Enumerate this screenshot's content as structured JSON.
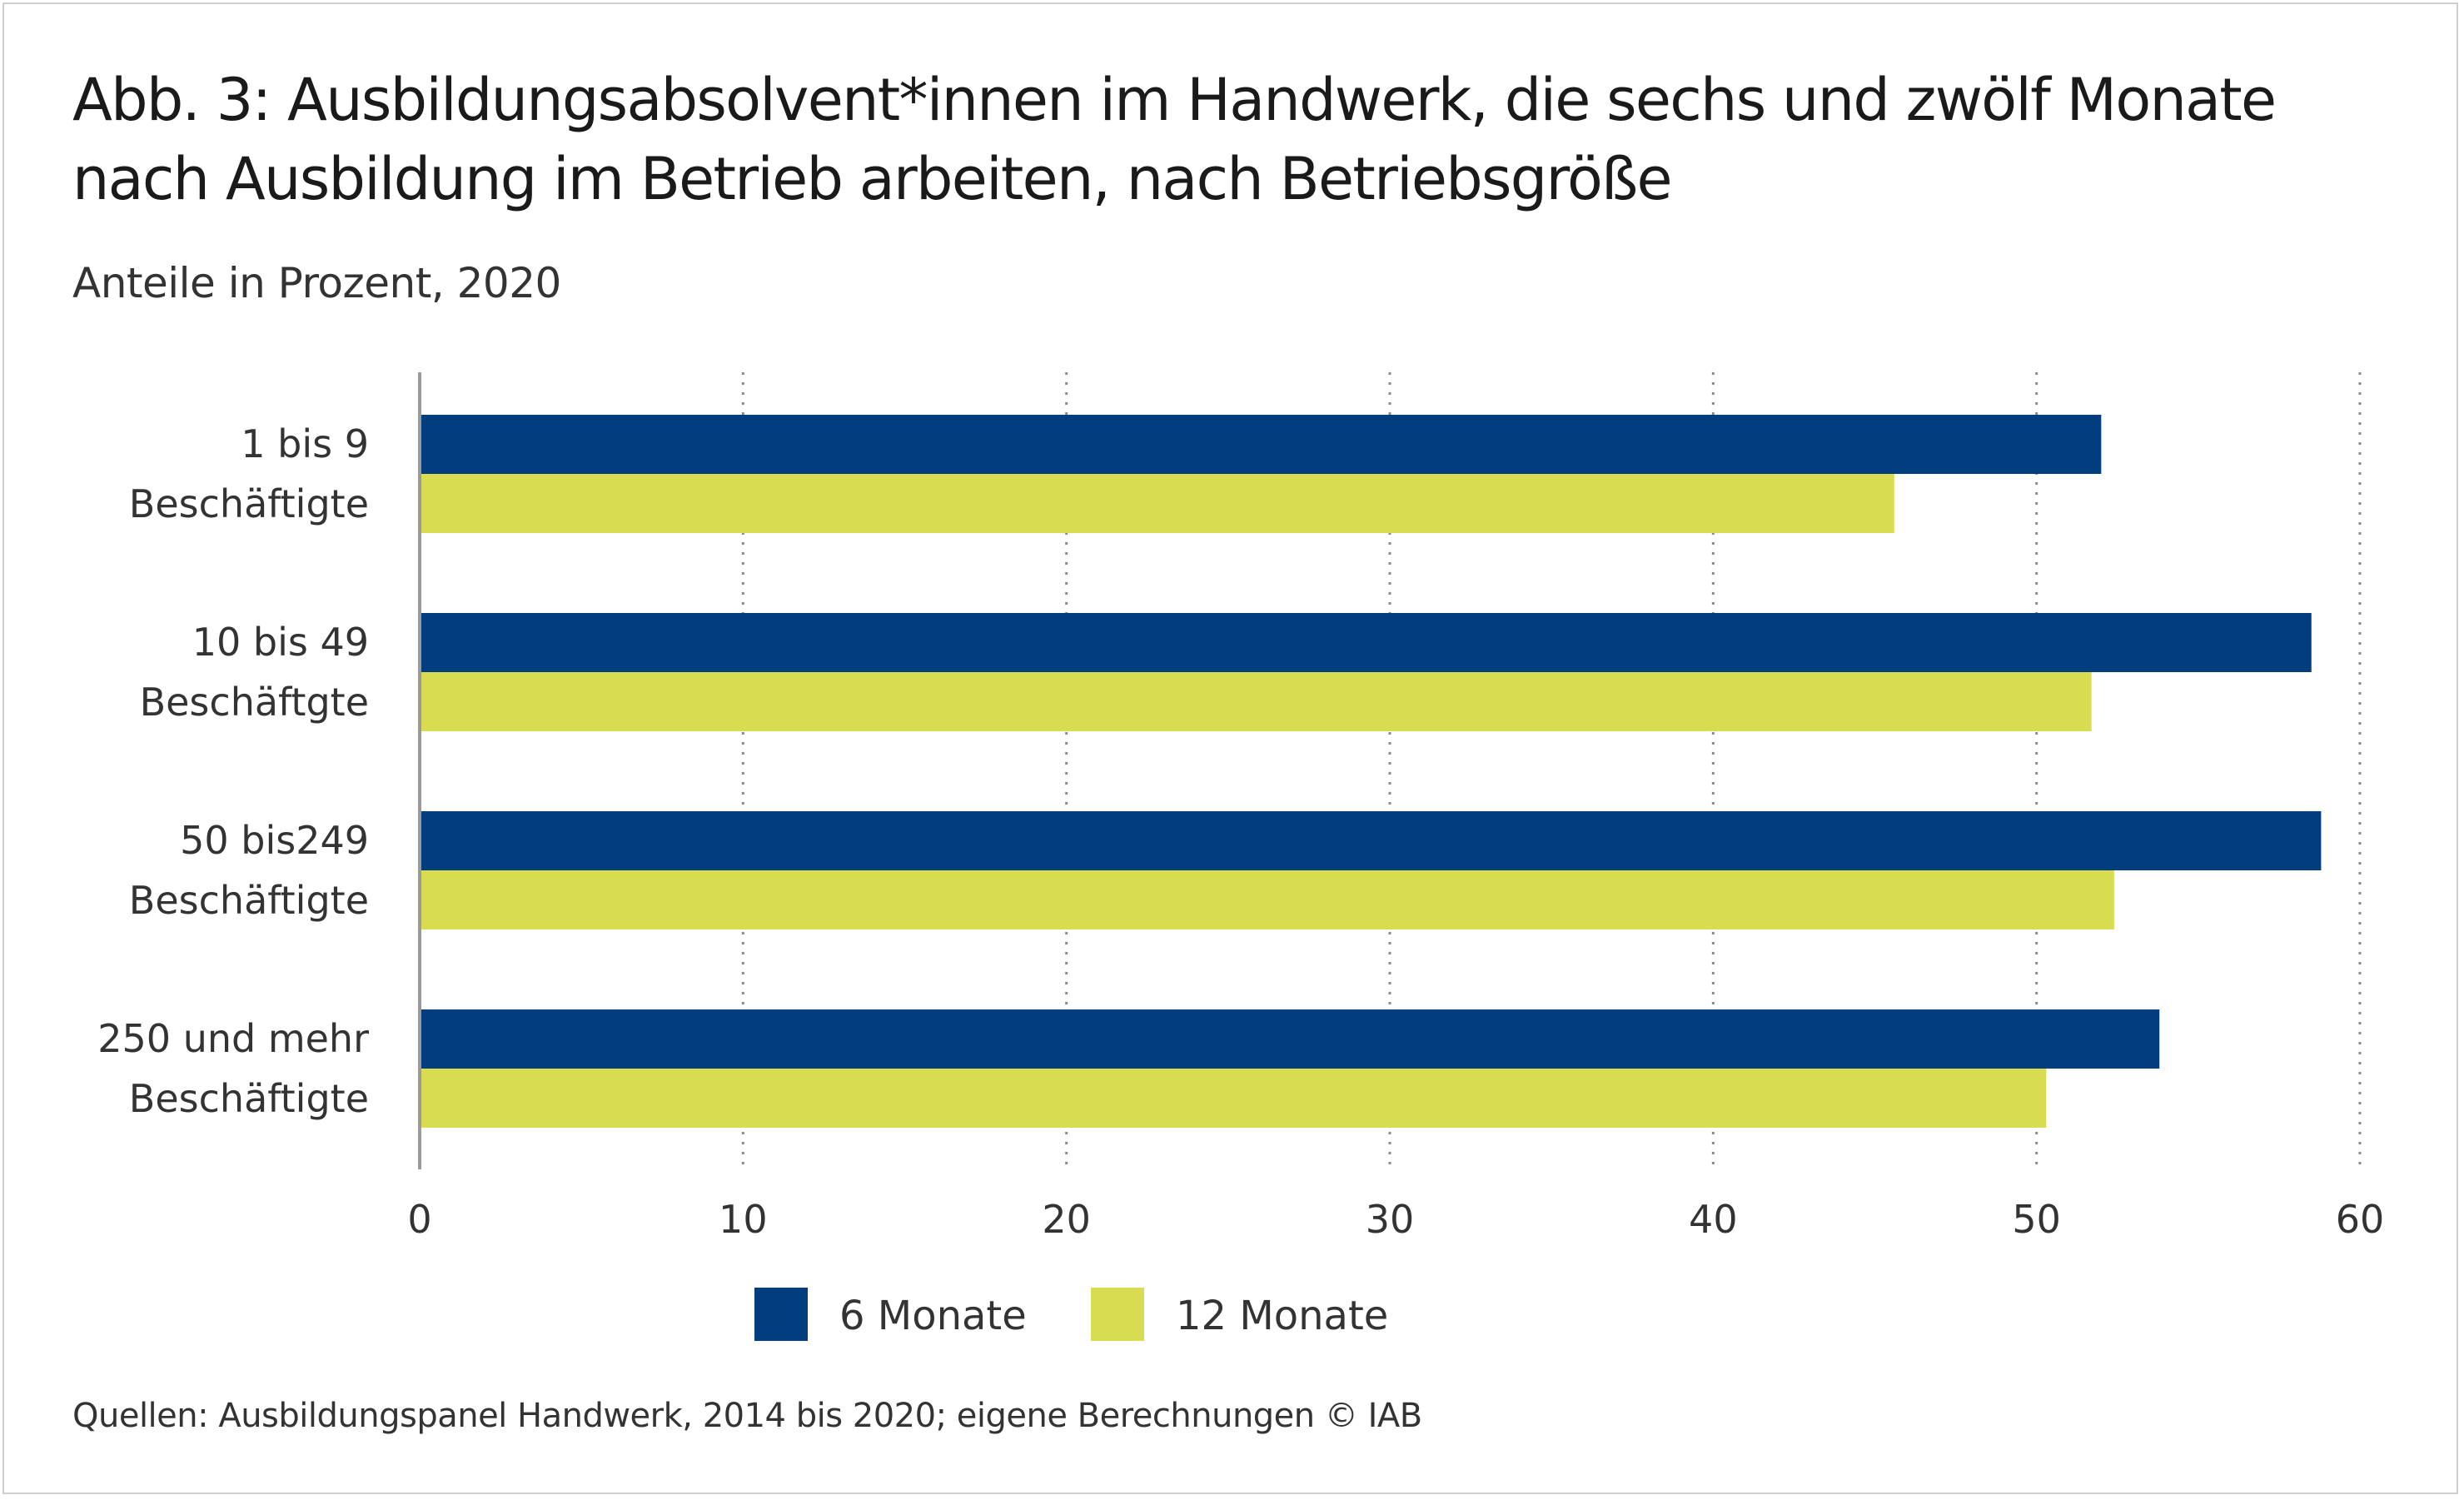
{
  "title_line1": "Abb. 3: Ausbildungsabsolvent*innen im Handwerk, die sechs und zwölf Monate",
  "title_line2": "nach Ausbildung im Betrieb arbeiten, nach Betriebsgröße",
  "subtitle": "Anteile in Prozent, 2020",
  "source": "Quellen: Ausbildungspanel Handwerk, 2014 bis 2020; eigene Berechnungen © IAB",
  "colors": {
    "series1": "#023E7D",
    "series2": "#D7DC50",
    "axis": "#9a9a9a",
    "grid": "#8a8a8a"
  },
  "chart_data": {
    "type": "bar",
    "orientation": "horizontal",
    "title": "Abb. 3: Ausbildungsabsolvent*innen im Handwerk, die sechs und zwölf Monate nach Ausbildung im Betrieb arbeiten, nach Betriebsgröße",
    "subtitle": "Anteile in Prozent, 2020",
    "categories": [
      [
        "1 bis 9",
        "Beschäftigte"
      ],
      [
        "10 bis 49",
        "Beschäftgte"
      ],
      [
        "50 bis249",
        "Beschäftigte"
      ],
      [
        "250 und mehr",
        "Beschäftigte"
      ]
    ],
    "series": [
      {
        "name": "6 Monate",
        "values": [
          52.0,
          58.5,
          58.8,
          53.8
        ]
      },
      {
        "name": "12 Monate",
        "values": [
          45.6,
          51.7,
          52.4,
          50.3
        ]
      }
    ],
    "xlim": [
      0,
      60
    ],
    "xticks": [
      "0",
      "10",
      "20",
      "30",
      "40",
      "50",
      "60"
    ],
    "grid": "vertical dotted",
    "legend": "bottom-center",
    "xlabel": "",
    "ylabel": ""
  }
}
